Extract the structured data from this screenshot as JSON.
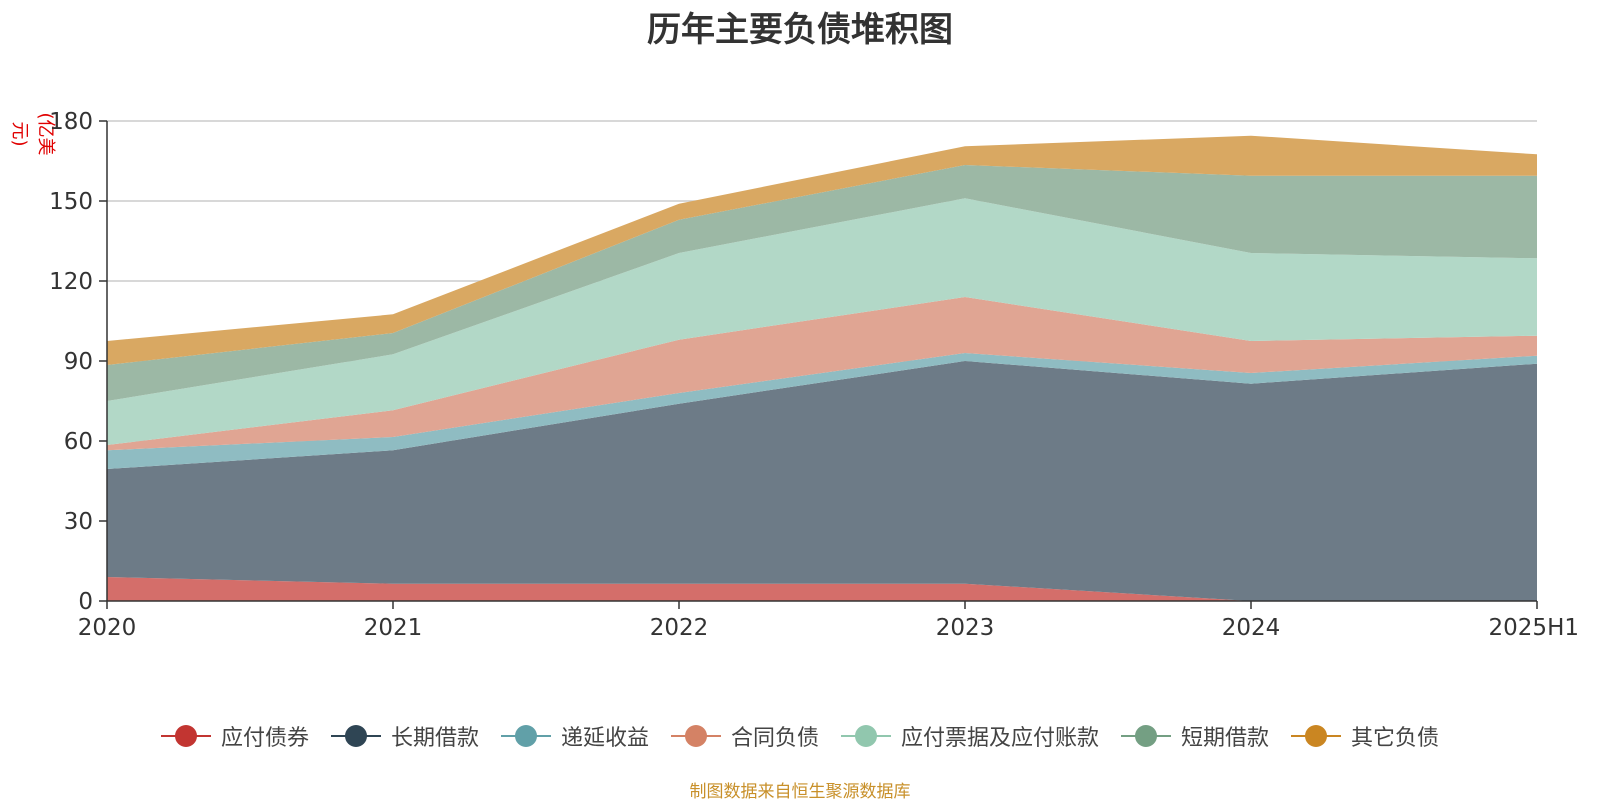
{
  "title": "历年主要负债堆积图",
  "source_note": "制图数据来自恒生聚源数据库",
  "chart_data": {
    "type": "area",
    "stacked": true,
    "title": "历年主要负债堆积图",
    "ylabel": "(亿美元)",
    "xlabel": "",
    "categories": [
      "2020",
      "2021",
      "2022",
      "2023",
      "2024",
      "2025H1"
    ],
    "ylim": [
      0,
      180
    ],
    "yticks": [
      0,
      30,
      60,
      90,
      120,
      150,
      180
    ],
    "grid": true,
    "legend_position": "bottom",
    "series": [
      {
        "name": "应付债券",
        "color": "#c23531",
        "fill": "#d46e6a",
        "values": [
          9,
          6.5,
          6.5,
          6.5,
          0,
          0
        ]
      },
      {
        "name": "长期借款",
        "color": "#2f4554",
        "fill": "#6d7b87",
        "values": [
          40.5,
          50,
          67.5,
          83.5,
          81.5,
          89
        ]
      },
      {
        "name": "递延收益",
        "color": "#61a0a8",
        "fill": "#8fbcc2",
        "values": [
          7,
          5,
          4,
          3,
          4,
          3
        ]
      },
      {
        "name": "合同负债",
        "color": "#d48265",
        "fill": "#e0a593",
        "values": [
          2,
          10,
          20,
          21,
          12,
          7.5
        ]
      },
      {
        "name": "应付票据及应付账款",
        "color": "#91c7ae",
        "fill": "#b2d8c7",
        "values": [
          16.5,
          21,
          32.5,
          37,
          33,
          29
        ]
      },
      {
        "name": "短期借款",
        "color": "#749f83",
        "fill": "#9cb8a5",
        "values": [
          13.5,
          8,
          12.5,
          12.5,
          29,
          31
        ]
      },
      {
        "name": "其它负债",
        "color": "#ca8622",
        "fill": "#d9a862",
        "values": [
          9,
          7,
          6,
          7,
          15,
          8
        ]
      }
    ]
  }
}
